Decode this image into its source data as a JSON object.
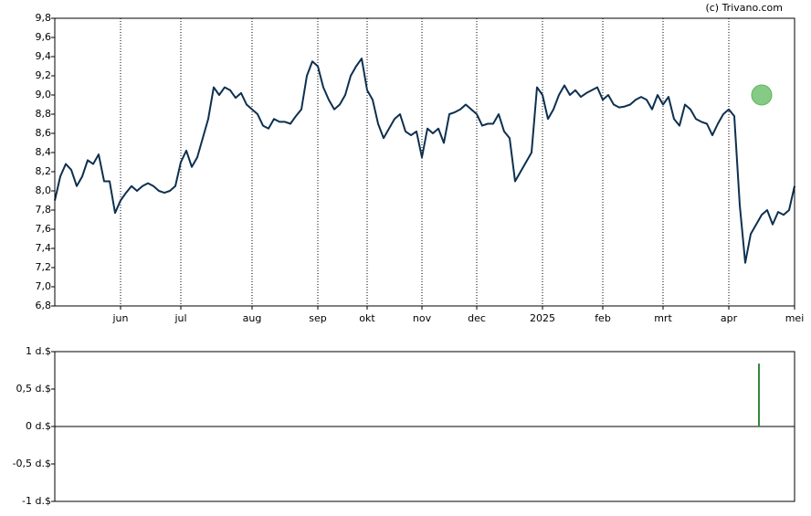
{
  "copyright": "(c) Trivano.com",
  "chart_data": [
    {
      "type": "line",
      "categories": [
        null,
        null,
        null,
        null,
        null,
        null,
        null,
        null,
        null,
        null,
        null,
        null,
        "jun",
        null,
        null,
        null,
        null,
        null,
        null,
        null,
        null,
        null,
        null,
        "jul",
        null,
        null,
        null,
        null,
        null,
        null,
        null,
        null,
        null,
        null,
        null,
        null,
        "aug",
        null,
        null,
        null,
        null,
        null,
        null,
        null,
        null,
        null,
        null,
        null,
        "sep",
        null,
        null,
        null,
        null,
        null,
        null,
        null,
        null,
        "okt",
        null,
        null,
        null,
        null,
        null,
        null,
        null,
        null,
        null,
        "nov",
        null,
        null,
        null,
        null,
        null,
        null,
        null,
        null,
        null,
        "dec",
        null,
        null,
        null,
        null,
        null,
        null,
        null,
        null,
        null,
        null,
        null,
        "2025",
        null,
        null,
        null,
        null,
        null,
        null,
        null,
        null,
        null,
        null,
        "feb",
        null,
        null,
        null,
        null,
        null,
        null,
        null,
        null,
        null,
        null,
        "mrt",
        null,
        null,
        null,
        null,
        null,
        null,
        null,
        null,
        null,
        null,
        null,
        "apr",
        null,
        null,
        null,
        null,
        null,
        null,
        null,
        null,
        null,
        null,
        null,
        "mei"
      ],
      "series": [
        {
          "color": "#0d3050",
          "values": [
            7.9,
            8.15,
            8.28,
            8.22,
            8.05,
            8.15,
            8.32,
            8.28,
            8.38,
            8.1,
            8.1,
            7.77,
            7.9,
            7.98,
            8.05,
            8.0,
            8.05,
            8.08,
            8.05,
            8.0,
            7.98,
            8.0,
            8.05,
            8.3,
            8.42,
            8.25,
            8.35,
            8.55,
            8.75,
            9.08,
            9.0,
            9.08,
            9.05,
            8.97,
            9.02,
            8.9,
            8.85,
            8.8,
            8.68,
            8.65,
            8.75,
            8.72,
            8.72,
            8.7,
            8.78,
            8.85,
            9.2,
            9.35,
            9.3,
            9.08,
            8.95,
            8.85,
            8.9,
            9.0,
            9.2,
            9.3,
            9.38,
            9.05,
            8.95,
            8.7,
            8.55,
            8.65,
            8.75,
            8.8,
            8.62,
            8.58,
            8.62,
            8.35,
            8.65,
            8.6,
            8.65,
            8.5,
            8.8,
            8.82,
            8.85,
            8.9,
            8.85,
            8.8,
            8.68,
            8.7,
            8.7,
            8.8,
            8.62,
            8.55,
            8.1,
            8.2,
            8.3,
            8.4,
            9.08,
            9.0,
            8.75,
            8.85,
            9.0,
            9.1,
            9.0,
            9.05,
            8.98,
            9.02,
            9.05,
            9.08,
            8.95,
            9.0,
            8.9,
            8.87,
            8.88,
            8.9,
            8.95,
            8.98,
            8.95,
            8.85,
            9.0,
            8.9,
            8.98,
            8.75,
            8.68,
            8.9,
            8.85,
            8.75,
            8.72,
            8.7,
            8.58,
            8.7,
            8.8,
            8.85,
            8.78,
            7.85,
            7.25,
            7.55,
            7.65,
            7.75,
            7.8,
            7.65,
            7.78,
            7.75,
            7.8,
            8.05
          ]
        }
      ],
      "marker": {
        "category_index": 129,
        "value": 9.0,
        "color": "#5cb85c"
      },
      "ylim": [
        6.8,
        9.8
      ],
      "yticks": [
        {
          "value": 6.8,
          "label": "6,8"
        },
        {
          "value": 7.0,
          "label": "7,0"
        },
        {
          "value": 7.2,
          "label": "7,2"
        },
        {
          "value": 7.4,
          "label": "7,4"
        },
        {
          "value": 7.6,
          "label": "7,6"
        },
        {
          "value": 7.8,
          "label": "7,8"
        },
        {
          "value": 8.0,
          "label": "8,0"
        },
        {
          "value": 8.2,
          "label": "8,2"
        },
        {
          "value": 8.4,
          "label": "8,4"
        },
        {
          "value": 8.6,
          "label": "8,6"
        },
        {
          "value": 8.8,
          "label": "8,8"
        },
        {
          "value": 9.0,
          "label": "9,0"
        },
        {
          "value": 9.2,
          "label": "9,2"
        },
        {
          "value": 9.4,
          "label": "9,4"
        },
        {
          "value": 9.6,
          "label": "9,6"
        },
        {
          "value": 9.8,
          "label": "9,8"
        }
      ],
      "grid": true
    },
    {
      "type": "bar",
      "x": [
        129
      ],
      "values": [
        0.84
      ],
      "color": "#2e8b3a",
      "ylim": [
        -1,
        1
      ],
      "yticks": [
        {
          "value": -1,
          "label": "-1 d.$"
        },
        {
          "value": -0.5,
          "label": "-0,5 d.$"
        },
        {
          "value": 0,
          "label": "0 d.$"
        },
        {
          "value": 0.5,
          "label": "0,5 d.$"
        },
        {
          "value": 1,
          "label": "1 d.$"
        }
      ]
    }
  ]
}
